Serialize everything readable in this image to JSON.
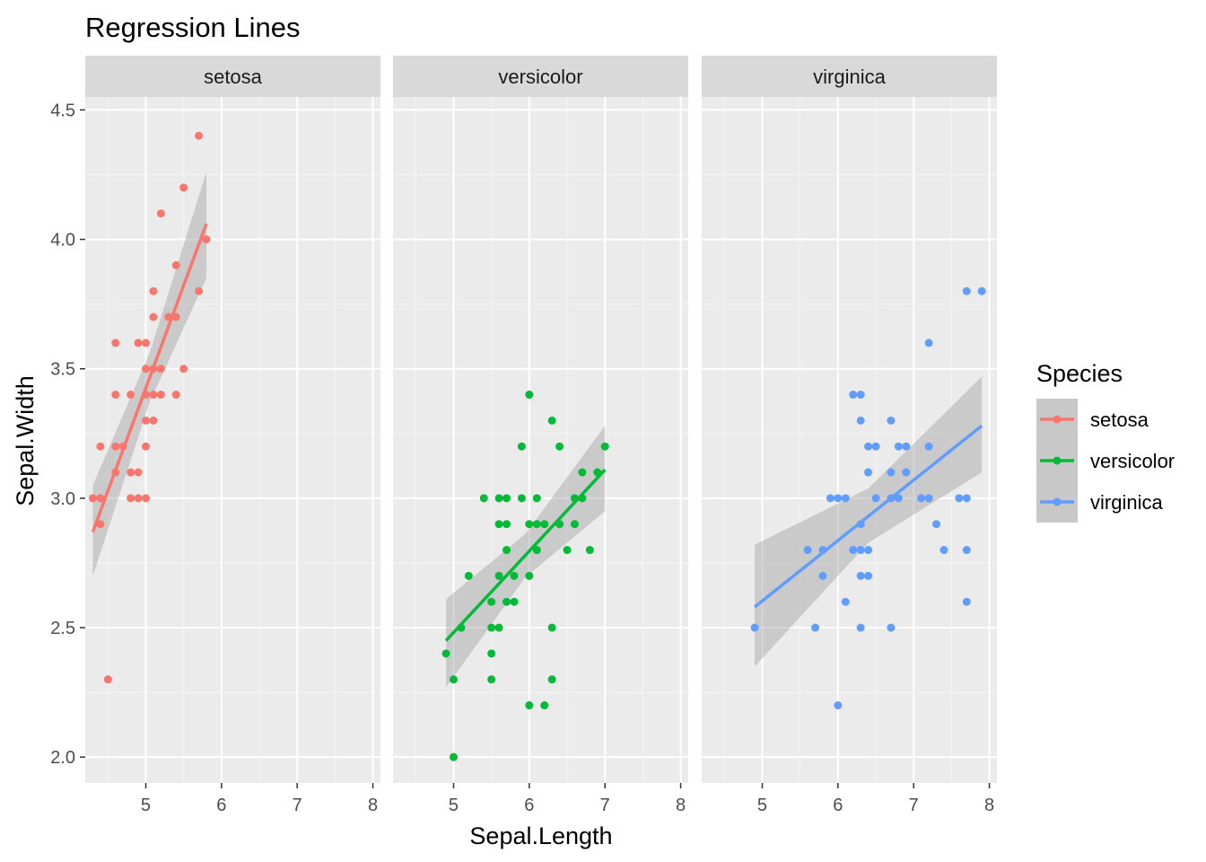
{
  "chart_data": {
    "type": "scatter",
    "title": "Regression Lines",
    "xlabel": "Sepal.Length",
    "ylabel": "Sepal.Width",
    "facet_by": "Species",
    "xlim": [
      4.2,
      8.1
    ],
    "ylim": [
      1.9,
      4.55
    ],
    "x_ticks": [
      5,
      6,
      7,
      8
    ],
    "y_ticks": [
      2.0,
      2.5,
      3.0,
      3.5,
      4.0,
      4.5
    ],
    "y_tick_labels": [
      "2.0",
      "2.5",
      "3.0",
      "3.5",
      "4.0",
      "4.5"
    ],
    "grid": true,
    "legend": {
      "title": "Species",
      "position": "right",
      "entries": [
        "setosa",
        "versicolor",
        "virginica"
      ]
    },
    "panels": [
      {
        "name": "setosa",
        "color": "#F8766D",
        "points": [
          [
            4.3,
            3.0
          ],
          [
            4.4,
            3.0
          ],
          [
            4.4,
            3.2
          ],
          [
            4.4,
            2.9
          ],
          [
            4.5,
            2.3
          ],
          [
            4.6,
            3.1
          ],
          [
            4.6,
            3.6
          ],
          [
            4.6,
            3.4
          ],
          [
            4.6,
            3.2
          ],
          [
            4.7,
            3.2
          ],
          [
            4.8,
            3.4
          ],
          [
            4.8,
            3.0
          ],
          [
            4.8,
            3.1
          ],
          [
            4.9,
            3.0
          ],
          [
            4.9,
            3.1
          ],
          [
            4.9,
            3.6
          ],
          [
            5.0,
            3.6
          ],
          [
            5.0,
            3.4
          ],
          [
            5.0,
            3.0
          ],
          [
            5.0,
            3.5
          ],
          [
            5.0,
            3.2
          ],
          [
            5.0,
            3.3
          ],
          [
            5.1,
            3.5
          ],
          [
            5.1,
            3.8
          ],
          [
            5.1,
            3.7
          ],
          [
            5.1,
            3.3
          ],
          [
            5.1,
            3.4
          ],
          [
            5.2,
            4.1
          ],
          [
            5.2,
            3.5
          ],
          [
            5.2,
            3.4
          ],
          [
            5.3,
            3.7
          ],
          [
            5.4,
            3.9
          ],
          [
            5.4,
            3.7
          ],
          [
            5.4,
            3.4
          ],
          [
            5.5,
            4.2
          ],
          [
            5.5,
            3.5
          ],
          [
            5.7,
            4.4
          ],
          [
            5.7,
            3.8
          ],
          [
            5.8,
            4.0
          ]
        ],
        "fit": {
          "x": [
            4.3,
            5.8
          ],
          "y": [
            2.87,
            4.06
          ],
          "ci_low": [
            2.7,
            3.85
          ],
          "ci_high": [
            3.05,
            4.26
          ]
        }
      },
      {
        "name": "versicolor",
        "color": "#00BA38",
        "points": [
          [
            4.9,
            2.4
          ],
          [
            5.0,
            2.3
          ],
          [
            5.0,
            2.0
          ],
          [
            5.1,
            2.5
          ],
          [
            5.2,
            2.7
          ],
          [
            5.4,
            3.0
          ],
          [
            5.5,
            2.3
          ],
          [
            5.5,
            2.4
          ],
          [
            5.5,
            2.5
          ],
          [
            5.5,
            2.6
          ],
          [
            5.6,
            2.9
          ],
          [
            5.6,
            3.0
          ],
          [
            5.6,
            2.7
          ],
          [
            5.6,
            2.5
          ],
          [
            5.7,
            2.8
          ],
          [
            5.7,
            2.6
          ],
          [
            5.7,
            2.9
          ],
          [
            5.7,
            3.0
          ],
          [
            5.8,
            2.7
          ],
          [
            5.8,
            2.6
          ],
          [
            5.9,
            3.2
          ],
          [
            5.9,
            3.0
          ],
          [
            6.0,
            2.2
          ],
          [
            6.0,
            2.9
          ],
          [
            6.0,
            2.7
          ],
          [
            6.0,
            3.4
          ],
          [
            6.1,
            2.8
          ],
          [
            6.1,
            2.9
          ],
          [
            6.1,
            3.0
          ],
          [
            6.2,
            2.2
          ],
          [
            6.2,
            2.9
          ],
          [
            6.3,
            2.3
          ],
          [
            6.3,
            2.5
          ],
          [
            6.3,
            3.3
          ],
          [
            6.4,
            2.9
          ],
          [
            6.4,
            3.2
          ],
          [
            6.5,
            2.8
          ],
          [
            6.6,
            2.9
          ],
          [
            6.6,
            3.0
          ],
          [
            6.7,
            3.1
          ],
          [
            6.7,
            3.0
          ],
          [
            6.8,
            2.8
          ],
          [
            6.9,
            3.1
          ],
          [
            7.0,
            3.2
          ]
        ],
        "fit": {
          "x": [
            4.9,
            7.0
          ],
          "y": [
            2.45,
            3.11
          ],
          "ci_low": [
            2.27,
            2.95
          ],
          "ci_high": [
            2.61,
            3.28
          ]
        }
      },
      {
        "name": "virginica",
        "color": "#619CFF",
        "points": [
          [
            4.9,
            2.5
          ],
          [
            5.6,
            2.8
          ],
          [
            5.7,
            2.5
          ],
          [
            5.8,
            2.7
          ],
          [
            5.8,
            2.8
          ],
          [
            5.9,
            3.0
          ],
          [
            6.0,
            2.2
          ],
          [
            6.0,
            3.0
          ],
          [
            6.1,
            3.0
          ],
          [
            6.1,
            2.6
          ],
          [
            6.2,
            3.4
          ],
          [
            6.2,
            2.8
          ],
          [
            6.3,
            3.3
          ],
          [
            6.3,
            2.9
          ],
          [
            6.3,
            2.5
          ],
          [
            6.3,
            2.7
          ],
          [
            6.3,
            2.8
          ],
          [
            6.3,
            3.4
          ],
          [
            6.4,
            3.2
          ],
          [
            6.4,
            2.8
          ],
          [
            6.4,
            2.7
          ],
          [
            6.4,
            3.1
          ],
          [
            6.5,
            3.0
          ],
          [
            6.5,
            3.2
          ],
          [
            6.7,
            3.3
          ],
          [
            6.7,
            2.5
          ],
          [
            6.7,
            3.0
          ],
          [
            6.7,
            3.1
          ],
          [
            6.8,
            3.0
          ],
          [
            6.8,
            3.2
          ],
          [
            6.9,
            3.1
          ],
          [
            6.9,
            3.2
          ],
          [
            7.1,
            3.0
          ],
          [
            7.2,
            3.6
          ],
          [
            7.2,
            3.2
          ],
          [
            7.2,
            3.0
          ],
          [
            7.3,
            2.9
          ],
          [
            7.4,
            2.8
          ],
          [
            7.6,
            3.0
          ],
          [
            7.7,
            3.8
          ],
          [
            7.7,
            2.6
          ],
          [
            7.7,
            2.8
          ],
          [
            7.7,
            3.0
          ],
          [
            7.9,
            3.8
          ]
        ],
        "fit": {
          "x": [
            4.9,
            7.9
          ],
          "y": [
            2.58,
            3.28
          ],
          "ci_low": [
            2.35,
            3.1
          ],
          "ci_high": [
            2.82,
            3.47
          ]
        }
      }
    ]
  }
}
